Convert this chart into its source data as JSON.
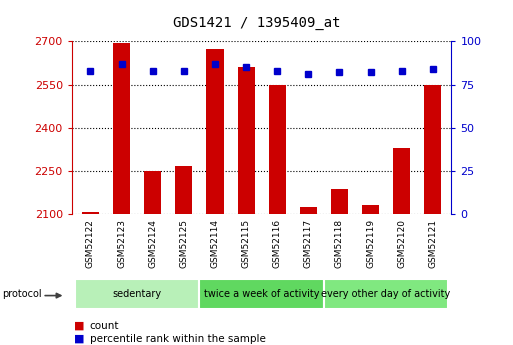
{
  "title": "GDS1421 / 1395409_at",
  "samples": [
    "GSM52122",
    "GSM52123",
    "GSM52124",
    "GSM52125",
    "GSM52114",
    "GSM52115",
    "GSM52116",
    "GSM52117",
    "GSM52118",
    "GSM52119",
    "GSM52120",
    "GSM52121"
  ],
  "counts": [
    2105,
    2695,
    2250,
    2265,
    2675,
    2610,
    2550,
    2125,
    2185,
    2130,
    2330,
    2550
  ],
  "percentile_ranks": [
    83,
    87,
    83,
    83,
    87,
    85,
    83,
    81,
    82,
    82,
    83,
    84
  ],
  "ylim_left": [
    2100,
    2700
  ],
  "ylim_right": [
    0,
    100
  ],
  "yticks_left": [
    2100,
    2250,
    2400,
    2550,
    2700
  ],
  "yticks_right": [
    0,
    25,
    50,
    75,
    100
  ],
  "groups": [
    {
      "label": "sedentary",
      "start": 0,
      "end": 4,
      "color": "#b8f0b8"
    },
    {
      "label": "twice a week of activity",
      "start": 4,
      "end": 8,
      "color": "#60d860"
    },
    {
      "label": "every other day of activity",
      "start": 8,
      "end": 12,
      "color": "#80e880"
    }
  ],
  "bar_color": "#cc0000",
  "dot_color": "#0000cc",
  "bar_width": 0.55,
  "grid_color": "#000000",
  "tick_color_left": "#cc0000",
  "tick_color_right": "#0000cc",
  "bg_color": "#ffffff",
  "plot_bg": "#ffffff",
  "legend_items": [
    {
      "label": "count",
      "color": "#cc0000"
    },
    {
      "label": "percentile rank within the sample",
      "color": "#0000cc"
    }
  ],
  "protocol_label": "protocol",
  "title_fontsize": 10,
  "label_fontsize": 6.5,
  "group_fontsize": 7,
  "legend_fontsize": 7.5
}
